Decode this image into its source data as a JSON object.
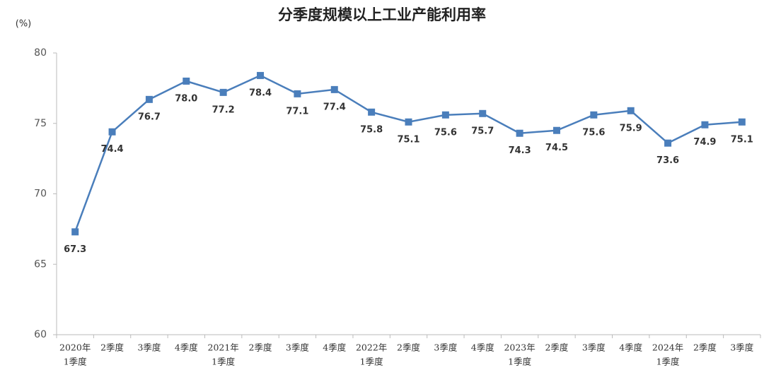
{
  "chart_data": {
    "type": "line",
    "title": "分季度规模以上工业产能利用率",
    "ylabel": "(%)",
    "categories": [
      [
        "2020年",
        "1季度"
      ],
      [
        "2季度"
      ],
      [
        "3季度"
      ],
      [
        "4季度"
      ],
      [
        "2021年",
        "1季度"
      ],
      [
        "2季度"
      ],
      [
        "3季度"
      ],
      [
        "4季度"
      ],
      [
        "2022年",
        "1季度"
      ],
      [
        "2季度"
      ],
      [
        "3季度"
      ],
      [
        "4季度"
      ],
      [
        "2023年",
        "1季度"
      ],
      [
        "2季度"
      ],
      [
        "3季度"
      ],
      [
        "4季度"
      ],
      [
        "2024年",
        "1季度"
      ],
      [
        "2季度"
      ],
      [
        "3季度"
      ]
    ],
    "values": [
      67.3,
      74.4,
      76.7,
      78.0,
      77.2,
      78.4,
      77.1,
      77.4,
      75.8,
      75.1,
      75.6,
      75.7,
      74.3,
      74.5,
      75.6,
      75.9,
      73.6,
      74.9,
      75.1
    ],
    "value_labels": [
      "67.3",
      "74.4",
      "76.7",
      "78.0",
      "77.2",
      "78.4",
      "77.1",
      "77.4",
      "75.8",
      "75.1",
      "75.6",
      "75.7",
      "74.3",
      "74.5",
      "75.6",
      "75.9",
      "73.6",
      "74.9",
      "75.1"
    ],
    "color": "#4a7ebb",
    "ylim": [
      60,
      80
    ],
    "yticks": [
      60,
      65,
      70,
      75,
      80
    ]
  }
}
